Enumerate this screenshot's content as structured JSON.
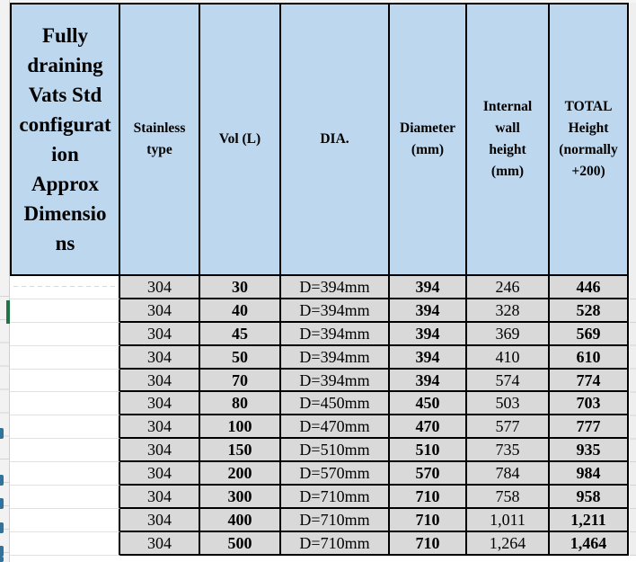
{
  "table": {
    "columns": {
      "title": "Fully draining Vats Std configuration Approx Dimensions",
      "stainless": "Stainless type",
      "vol": "Vol (L)",
      "dia": "DIA.",
      "diameter": "Diameter (mm)",
      "wall": "Internal wall height (mm)",
      "total": "TOTAL Height (normally +200)"
    },
    "rows": [
      {
        "stainless": "304",
        "vol": "30",
        "dia": "D=394mm",
        "diameter": "394",
        "wall": "246",
        "total": "446"
      },
      {
        "stainless": "304",
        "vol": "40",
        "dia": "D=394mm",
        "diameter": "394",
        "wall": "328",
        "total": "528"
      },
      {
        "stainless": "304",
        "vol": "45",
        "dia": "D=394mm",
        "diameter": "394",
        "wall": "369",
        "total": "569"
      },
      {
        "stainless": "304",
        "vol": "50",
        "dia": "D=394mm",
        "diameter": "394",
        "wall": "410",
        "total": "610"
      },
      {
        "stainless": "304",
        "vol": "70",
        "dia": "D=394mm",
        "diameter": "394",
        "wall": "574",
        "total": "774"
      },
      {
        "stainless": "304",
        "vol": "80",
        "dia": "D=450mm",
        "diameter": "450",
        "wall": "503",
        "total": "703"
      },
      {
        "stainless": "304",
        "vol": "100",
        "dia": "D=470mm",
        "diameter": "470",
        "wall": "577",
        "total": "777"
      },
      {
        "stainless": "304",
        "vol": "150",
        "dia": "D=510mm",
        "diameter": "510",
        "wall": "735",
        "total": "935"
      },
      {
        "stainless": "304",
        "vol": "200",
        "dia": "D=570mm",
        "diameter": "570",
        "wall": "784",
        "total": "984"
      },
      {
        "stainless": "304",
        "vol": "300",
        "dia": "D=710mm",
        "diameter": "710",
        "wall": "758",
        "total": "958"
      },
      {
        "stainless": "304",
        "vol": "400",
        "dia": "D=710mm",
        "diameter": "710",
        "wall": "1,011",
        "total": "1,211"
      },
      {
        "stainless": "304",
        "vol": "500",
        "dia": "D=710mm",
        "diameter": "710",
        "wall": "1,264",
        "total": "1,464"
      }
    ]
  },
  "colors": {
    "header_blue": "#bdd7ee",
    "data_gray": "#d9d9d9",
    "border_black": "#000000",
    "selection_green": "#217346",
    "clipped_glyph_blue": "#31739c",
    "gridline_gray": "#d4d4d4"
  },
  "artifacts": {
    "clipped_glyph_y_positions": [
      476,
      528,
      554,
      581,
      607,
      619
    ]
  }
}
